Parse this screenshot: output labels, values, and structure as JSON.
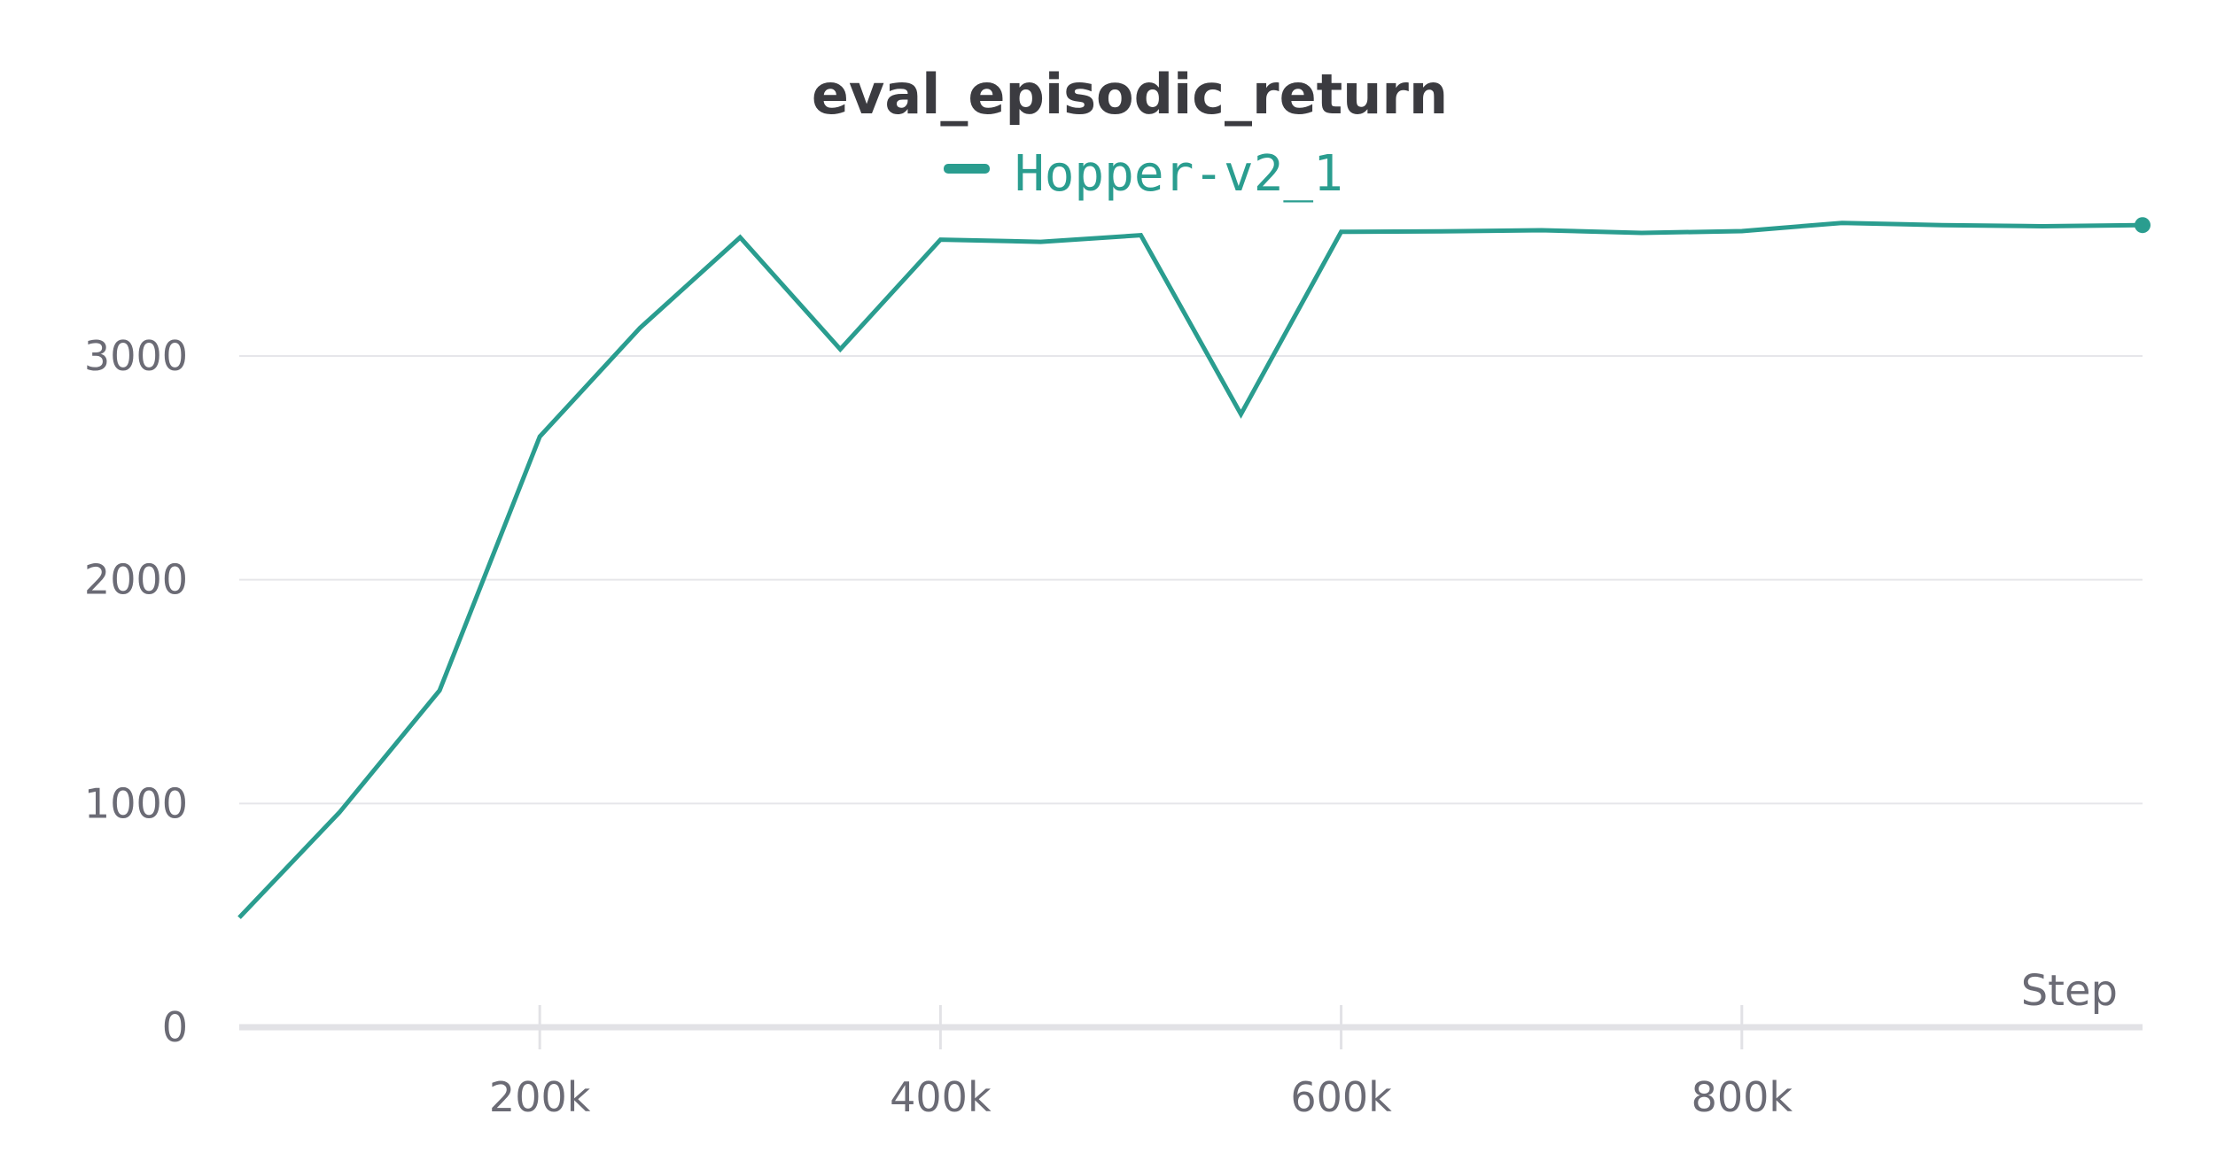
{
  "chart_data": {
    "type": "line",
    "title": "eval_episodic_return",
    "xlabel": "Step",
    "ylabel": "",
    "xlim": [
      50000,
      1000000
    ],
    "ylim": [
      0,
      3600
    ],
    "x_ticks": [
      200000,
      400000,
      600000,
      800000
    ],
    "x_tick_labels": [
      "200k",
      "400k",
      "600k",
      "800k"
    ],
    "y_ticks": [
      0,
      1000,
      2000,
      3000
    ],
    "y_tick_labels": [
      "0",
      "1000",
      "2000",
      "3000"
    ],
    "grid": true,
    "legend_position": "top-center",
    "series": [
      {
        "name": "Hopper-v2_1",
        "color": "#2a9d8f",
        "x": [
          50000,
          100000,
          150000,
          200000,
          250000,
          300000,
          350000,
          400000,
          450000,
          500000,
          550000,
          600000,
          650000,
          700000,
          750000,
          800000,
          850000,
          900000,
          950000,
          1000000
        ],
        "y": [
          490,
          960,
          1505,
          2640,
          3125,
          3530,
          3030,
          3520,
          3510,
          3540,
          2740,
          3555,
          3557,
          3562,
          3550,
          3558,
          3595,
          3585,
          3580,
          3585
        ]
      }
    ]
  }
}
